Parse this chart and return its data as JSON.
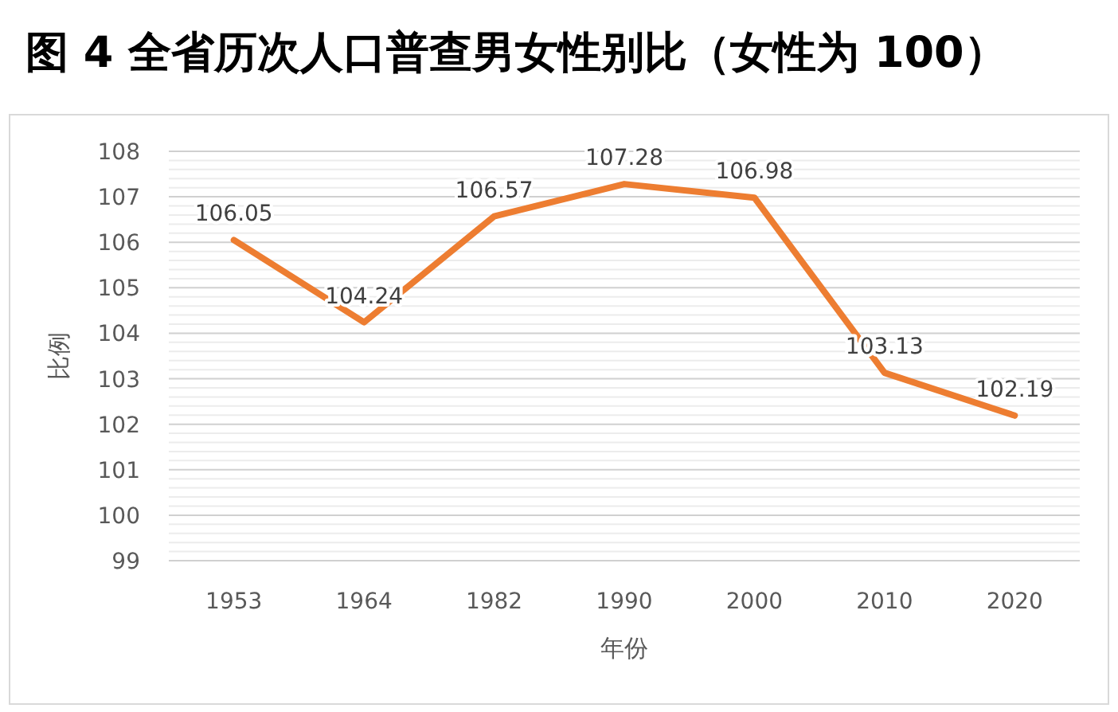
{
  "chart_data": {
    "type": "line",
    "title": "图 4  全省历次人口普查男女性别比（女性为 100）",
    "xlabel": "年份",
    "ylabel": "比例",
    "categories": [
      "1953",
      "1964",
      "1982",
      "1990",
      "2000",
      "2010",
      "2020"
    ],
    "series": [
      {
        "color": "#ed7d31",
        "values": [
          106.05,
          104.24,
          106.57,
          107.28,
          106.98,
          103.13,
          102.19
        ]
      }
    ],
    "ylim": [
      99,
      108
    ],
    "yticks": [
      99,
      100,
      101,
      102,
      103,
      104,
      105,
      106,
      107,
      108
    ],
    "grid": "y",
    "data_labels": true,
    "marker": "none"
  }
}
